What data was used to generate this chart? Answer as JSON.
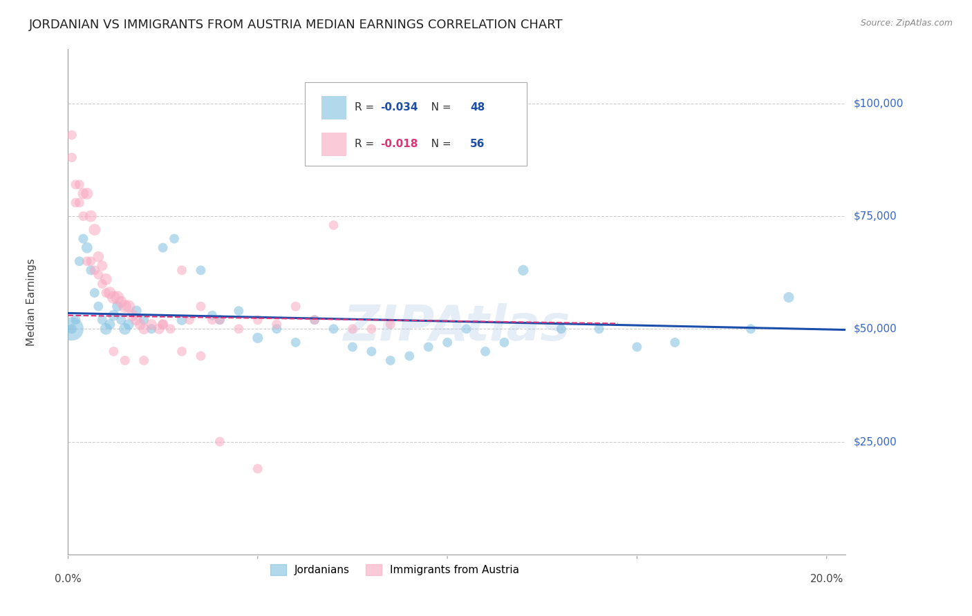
{
  "title": "JORDANIAN VS IMMIGRANTS FROM AUSTRIA MEDIAN EARNINGS CORRELATION CHART",
  "source": "Source: ZipAtlas.com",
  "ylabel": "Median Earnings",
  "ytick_labels": [
    "$25,000",
    "$50,000",
    "$75,000",
    "$100,000"
  ],
  "ytick_values": [
    25000,
    50000,
    75000,
    100000
  ],
  "ymin": 0,
  "ymax": 112000,
  "xmin": 0.0,
  "xmax": 0.205,
  "legend_r_blue": "R = ",
  "legend_r_blue_val": "-0.034",
  "legend_n_blue": "N = ",
  "legend_n_blue_val": "48",
  "legend_r_pink": "R = ",
  "legend_r_pink_val": "-0.018",
  "legend_n_pink": "N = ",
  "legend_n_pink_val": "56",
  "blue_color": "#7fbfdf",
  "pink_color": "#f9a8c0",
  "line_blue_color": "#1a4eaa",
  "line_pink_color": "#dd3377",
  "watermark": "ZIPAtlas",
  "blue_scatter_x": [
    0.001,
    0.002,
    0.003,
    0.004,
    0.005,
    0.006,
    0.007,
    0.008,
    0.009,
    0.01,
    0.011,
    0.012,
    0.013,
    0.014,
    0.015,
    0.016,
    0.018,
    0.02,
    0.022,
    0.025,
    0.028,
    0.03,
    0.035,
    0.038,
    0.04,
    0.045,
    0.05,
    0.055,
    0.06,
    0.065,
    0.07,
    0.075,
    0.08,
    0.085,
    0.09,
    0.095,
    0.1,
    0.105,
    0.11,
    0.115,
    0.12,
    0.13,
    0.14,
    0.15,
    0.16,
    0.18,
    0.19,
    0.001
  ],
  "blue_scatter_y": [
    50000,
    52000,
    65000,
    70000,
    68000,
    63000,
    58000,
    55000,
    52000,
    50000,
    51000,
    53000,
    55000,
    52000,
    50000,
    51000,
    54000,
    52000,
    50000,
    68000,
    70000,
    52000,
    63000,
    53000,
    52000,
    54000,
    48000,
    50000,
    47000,
    52000,
    50000,
    46000,
    45000,
    43000,
    44000,
    46000,
    47000,
    50000,
    45000,
    47000,
    63000,
    50000,
    50000,
    46000,
    47000,
    50000,
    57000,
    50000
  ],
  "blue_scatter_s": [
    100,
    100,
    100,
    100,
    130,
    100,
    100,
    100,
    100,
    150,
    120,
    130,
    120,
    100,
    150,
    120,
    120,
    100,
    100,
    100,
    100,
    120,
    100,
    100,
    100,
    100,
    120,
    100,
    100,
    100,
    100,
    100,
    100,
    100,
    100,
    100,
    100,
    100,
    100,
    100,
    120,
    100,
    100,
    100,
    100,
    100,
    120,
    600
  ],
  "pink_scatter_x": [
    0.001,
    0.002,
    0.003,
    0.004,
    0.005,
    0.006,
    0.007,
    0.008,
    0.009,
    0.01,
    0.011,
    0.012,
    0.013,
    0.014,
    0.015,
    0.016,
    0.017,
    0.018,
    0.019,
    0.02,
    0.022,
    0.024,
    0.025,
    0.027,
    0.03,
    0.032,
    0.035,
    0.038,
    0.04,
    0.045,
    0.05,
    0.055,
    0.06,
    0.065,
    0.07,
    0.075,
    0.08,
    0.085,
    0.001,
    0.002,
    0.003,
    0.004,
    0.005,
    0.006,
    0.007,
    0.008,
    0.009,
    0.01,
    0.012,
    0.015,
    0.02,
    0.025,
    0.03,
    0.035,
    0.04,
    0.05
  ],
  "pink_scatter_y": [
    93000,
    82000,
    82000,
    80000,
    80000,
    75000,
    72000,
    66000,
    64000,
    61000,
    58000,
    57000,
    57000,
    56000,
    55000,
    55000,
    53000,
    52000,
    51000,
    50000,
    51000,
    50000,
    51000,
    50000,
    63000,
    52000,
    55000,
    52000,
    52000,
    50000,
    52000,
    51000,
    55000,
    52000,
    73000,
    50000,
    50000,
    51000,
    88000,
    78000,
    78000,
    75000,
    65000,
    65000,
    63000,
    62000,
    60000,
    58000,
    45000,
    43000,
    43000,
    51000,
    45000,
    44000,
    25000,
    19000
  ],
  "pink_scatter_s": [
    100,
    100,
    100,
    130,
    150,
    150,
    150,
    130,
    120,
    150,
    160,
    180,
    180,
    150,
    180,
    170,
    150,
    140,
    130,
    130,
    120,
    120,
    120,
    100,
    100,
    100,
    100,
    100,
    100,
    100,
    100,
    100,
    100,
    100,
    100,
    100,
    100,
    100,
    100,
    100,
    100,
    100,
    100,
    100,
    100,
    100,
    100,
    100,
    100,
    100,
    100,
    100,
    100,
    100,
    100,
    100
  ],
  "blue_trendline_x": [
    0.0,
    0.205
  ],
  "blue_trendline_y": [
    53500,
    49800
  ],
  "pink_trendline_x": [
    0.0,
    0.145
  ],
  "pink_trendline_y": [
    53000,
    51200
  ],
  "background_color": "#ffffff",
  "grid_color": "#cccccc",
  "axis_color": "#999999",
  "ytick_color": "#3366cc",
  "title_color": "#222222",
  "title_fontsize": 13,
  "ylabel_fontsize": 11,
  "ytick_fontsize": 11,
  "xtick_fontsize": 11,
  "source_fontsize": 9,
  "legend_fontsize": 11
}
